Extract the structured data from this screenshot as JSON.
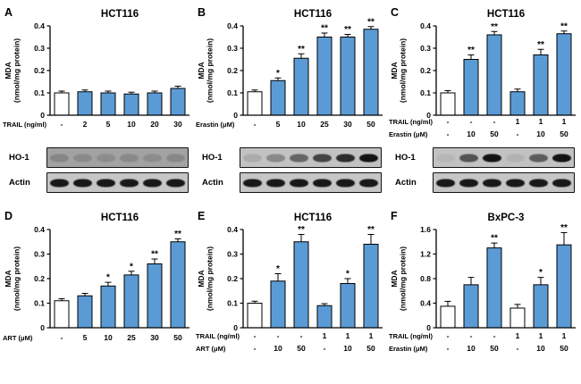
{
  "colors": {
    "bar_blue": "#5b9bd5",
    "bar_white": "#ffffff",
    "bar_stroke": "#000000",
    "text": "#000000"
  },
  "chart_data": [
    {
      "id": "A",
      "type": "bar",
      "title": "HCT116",
      "ylabel_line1": "MDA",
      "ylabel_line2": "(nmol/mg protein)",
      "ylim": [
        0,
        0.4
      ],
      "yticks": [
        0,
        0.1,
        0.2,
        0.3,
        0.4
      ],
      "xaxis_rows": [
        {
          "label": "TRAIL (ng/ml)",
          "values": [
            "-",
            "2",
            "5",
            "10",
            "20",
            "30"
          ]
        }
      ],
      "values": [
        0.1,
        0.105,
        0.1,
        0.095,
        0.1,
        0.12
      ],
      "errors": [
        0.008,
        0.008,
        0.008,
        0.008,
        0.008,
        0.01
      ],
      "sig": [
        "",
        "",
        "",
        "",
        "",
        ""
      ],
      "bar_colors": [
        "white",
        "blue",
        "blue",
        "blue",
        "blue",
        "blue"
      ],
      "blots": [
        {
          "label": "HO-1",
          "bg": "#a2a2a2",
          "band_opacity": [
            0.18,
            0.15,
            0.14,
            0.16,
            0.14,
            0.17
          ]
        },
        {
          "label": "Actin",
          "bg": "#c6c6c6",
          "band_opacity": [
            0.92,
            0.92,
            0.92,
            0.92,
            0.92,
            0.92
          ]
        }
      ]
    },
    {
      "id": "B",
      "type": "bar",
      "title": "HCT116",
      "ylabel_line1": "MDA",
      "ylabel_line2": "(nmol/mg protein)",
      "ylim": [
        0,
        0.4
      ],
      "yticks": [
        0,
        0.1,
        0.2,
        0.3,
        0.4
      ],
      "xaxis_rows": [
        {
          "label": "Erastin (μM)",
          "values": [
            "-",
            "5",
            "10",
            "25",
            "30",
            "50"
          ]
        }
      ],
      "values": [
        0.105,
        0.155,
        0.255,
        0.35,
        0.35,
        0.385
      ],
      "errors": [
        0.008,
        0.012,
        0.02,
        0.018,
        0.012,
        0.012
      ],
      "sig": [
        "",
        "*",
        "**",
        "**",
        "**",
        "**"
      ],
      "bar_colors": [
        "white",
        "blue",
        "blue",
        "blue",
        "blue",
        "blue"
      ],
      "blots": [
        {
          "label": "HO-1",
          "bg": "#c2c2c2",
          "band_opacity": [
            0.12,
            0.3,
            0.5,
            0.68,
            0.82,
            0.95
          ]
        },
        {
          "label": "Actin",
          "bg": "#c6c6c6",
          "band_opacity": [
            0.92,
            0.92,
            0.92,
            0.92,
            0.92,
            0.92
          ]
        }
      ]
    },
    {
      "id": "C",
      "type": "bar",
      "title": "HCT116",
      "ylabel_line1": "MDA",
      "ylabel_line2": "(nmol/mg protein)",
      "ylim": [
        0,
        0.4
      ],
      "yticks": [
        0,
        0.1,
        0.2,
        0.3,
        0.4
      ],
      "xaxis_rows": [
        {
          "label": "TRAIL (ng/ml)",
          "values": [
            "-",
            "-",
            "-",
            "1",
            "1",
            "1"
          ]
        },
        {
          "label": "Erastin (μM)",
          "values": [
            "-",
            "10",
            "50",
            "-",
            "10",
            "50"
          ]
        }
      ],
      "values": [
        0.1,
        0.25,
        0.36,
        0.105,
        0.27,
        0.365
      ],
      "errors": [
        0.01,
        0.02,
        0.015,
        0.012,
        0.025,
        0.012
      ],
      "sig": [
        "",
        "**",
        "**",
        "",
        "**",
        "**"
      ],
      "bar_colors": [
        "white",
        "blue",
        "blue",
        "blue",
        "blue",
        "blue"
      ],
      "blots": [
        {
          "label": "HO-1",
          "bg": "#c2c2c2",
          "band_opacity": [
            0.06,
            0.6,
            0.95,
            0.08,
            0.55,
            0.95
          ]
        },
        {
          "label": "Actin",
          "bg": "#c6c6c6",
          "band_opacity": [
            0.92,
            0.92,
            0.92,
            0.92,
            0.92,
            0.92
          ]
        }
      ]
    },
    {
      "id": "D",
      "type": "bar",
      "title": "HCT116",
      "ylabel_line1": "MDA",
      "ylabel_line2": "(nmol/mg protein)",
      "ylim": [
        0,
        0.4
      ],
      "yticks": [
        0,
        0.1,
        0.2,
        0.3,
        0.4
      ],
      "xaxis_rows": [
        {
          "label": "ART (μM)",
          "values": [
            "-",
            "5",
            "10",
            "25",
            "30",
            "50"
          ]
        }
      ],
      "values": [
        0.11,
        0.13,
        0.17,
        0.215,
        0.26,
        0.35
      ],
      "errors": [
        0.008,
        0.01,
        0.015,
        0.015,
        0.02,
        0.012
      ],
      "sig": [
        "",
        "",
        "*",
        "*",
        "**",
        "**"
      ],
      "bar_colors": [
        "white",
        "blue",
        "blue",
        "blue",
        "blue",
        "blue"
      ]
    },
    {
      "id": "E",
      "type": "bar",
      "title": "HCT116",
      "ylabel_line1": "MDA",
      "ylabel_line2": "(nmol/mg protein)",
      "ylim": [
        0,
        0.4
      ],
      "yticks": [
        0,
        0.1,
        0.2,
        0.3,
        0.4
      ],
      "xaxis_rows": [
        {
          "label": "TRAIL (ng/ml)",
          "values": [
            "-",
            "-",
            "-",
            "1",
            "1",
            "1"
          ]
        },
        {
          "label": "ART (μM)",
          "values": [
            "-",
            "10",
            "50",
            "-",
            "10",
            "50"
          ]
        }
      ],
      "values": [
        0.1,
        0.19,
        0.35,
        0.09,
        0.18,
        0.34
      ],
      "errors": [
        0.008,
        0.03,
        0.03,
        0.008,
        0.02,
        0.04
      ],
      "sig": [
        "",
        "*",
        "**",
        "",
        "*",
        "**"
      ],
      "bar_colors": [
        "white",
        "blue",
        "blue",
        "blue",
        "blue",
        "blue"
      ]
    },
    {
      "id": "F",
      "type": "bar",
      "title": "BxPC-3",
      "ylabel_line1": "MDA",
      "ylabel_line2": "(nmol/mg protein)",
      "ylim": [
        0,
        1.6
      ],
      "yticks": [
        0,
        0.4,
        0.8,
        1.2,
        1.6
      ],
      "xaxis_rows": [
        {
          "label": "TRAIL (ng/ml)",
          "values": [
            "-",
            "-",
            "-",
            "1",
            "1",
            "1"
          ]
        },
        {
          "label": "Erastin (μM)",
          "values": [
            "-",
            "10",
            "50",
            "-",
            "10",
            "50"
          ]
        }
      ],
      "values": [
        0.35,
        0.7,
        1.3,
        0.32,
        0.7,
        1.35
      ],
      "errors": [
        0.08,
        0.12,
        0.08,
        0.06,
        0.12,
        0.2
      ],
      "sig": [
        "",
        "",
        "**",
        "",
        "*",
        "**"
      ],
      "bar_colors": [
        "white",
        "blue",
        "blue",
        "white",
        "blue",
        "blue"
      ]
    }
  ]
}
